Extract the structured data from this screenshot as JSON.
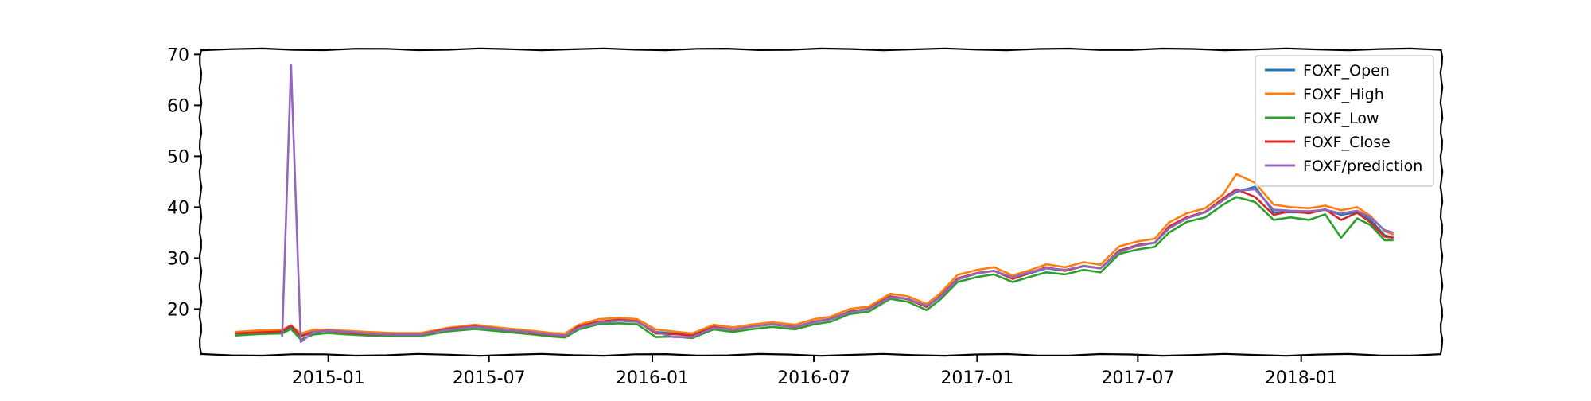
{
  "chart_data": {
    "type": "line",
    "title": "",
    "xlabel": "",
    "ylabel": "",
    "x_ticks": [
      "2015-01",
      "2015-07",
      "2016-01",
      "2016-07",
      "2017-01",
      "2017-07",
      "2018-01"
    ],
    "y_ticks": [
      20,
      30,
      40,
      50,
      60,
      70
    ],
    "xlim": [
      "2014-08-10",
      "2018-06-08"
    ],
    "ylim": [
      11,
      71
    ],
    "legend_placement": "top-right",
    "grid": false,
    "x": [
      "2014-09-18",
      "2014-10-15",
      "2014-11-10",
      "2014-11-20",
      "2014-12-01",
      "2014-12-15",
      "2015-01-01",
      "2015-01-15",
      "2015-02-15",
      "2015-03-15",
      "2015-04-15",
      "2015-05-15",
      "2015-06-15",
      "2015-07-15",
      "2015-08-15",
      "2015-09-10",
      "2015-09-25",
      "2015-10-10",
      "2015-11-01",
      "2015-11-25",
      "2015-12-15",
      "2016-01-05",
      "2016-01-25",
      "2016-02-15",
      "2016-03-10",
      "2016-04-01",
      "2016-04-20",
      "2016-05-15",
      "2016-06-10",
      "2016-07-01",
      "2016-07-20",
      "2016-08-10",
      "2016-09-01",
      "2016-09-25",
      "2016-10-15",
      "2016-11-05",
      "2016-11-20",
      "2016-12-10",
      "2017-01-01",
      "2017-01-20",
      "2017-02-10",
      "2017-03-01",
      "2017-03-20",
      "2017-04-10",
      "2017-05-01",
      "2017-05-20",
      "2017-06-10",
      "2017-07-01",
      "2017-07-20",
      "2017-08-05",
      "2017-08-25",
      "2017-09-15",
      "2017-10-05",
      "2017-10-20",
      "2017-11-10",
      "2017-12-01",
      "2017-12-20",
      "2018-01-10",
      "2018-01-28",
      "2018-02-15",
      "2018-03-05",
      "2018-03-20",
      "2018-04-05",
      "2018-04-15"
    ],
    "series": [
      {
        "name": "FOXF_Open",
        "color": "#1f77b4",
        "values": [
          15.2,
          15.5,
          15.6,
          16.5,
          14.8,
          15.5,
          15.7,
          15.5,
          15.2,
          15.0,
          15.0,
          16.0,
          16.5,
          16.0,
          15.5,
          15.0,
          14.8,
          16.5,
          17.5,
          17.7,
          17.5,
          15.5,
          15.2,
          14.8,
          16.5,
          16.0,
          16.5,
          17.0,
          16.5,
          17.5,
          18.0,
          19.5,
          20.0,
          22.5,
          22.0,
          20.5,
          22.5,
          26.0,
          27.0,
          27.5,
          26.0,
          27.0,
          28.0,
          27.5,
          28.5,
          28.0,
          31.5,
          32.5,
          33.0,
          36.0,
          38.0,
          39.0,
          41.5,
          43.0,
          44.0,
          39.0,
          39.0,
          39.0,
          39.5,
          38.5,
          39.0,
          37.5,
          34.5,
          34.0
        ]
      },
      {
        "name": "FOXF_High",
        "color": "#ff7f0e",
        "values": [
          15.5,
          15.8,
          15.9,
          16.8,
          15.2,
          15.9,
          16.0,
          15.8,
          15.5,
          15.3,
          15.3,
          16.3,
          16.9,
          16.3,
          15.8,
          15.3,
          15.2,
          16.9,
          18.0,
          18.3,
          18.0,
          16.0,
          15.6,
          15.2,
          16.9,
          16.4,
          16.9,
          17.4,
          16.9,
          18.0,
          18.5,
          20.0,
          20.5,
          23.0,
          22.5,
          21.0,
          23.0,
          26.7,
          27.7,
          28.2,
          26.6,
          27.6,
          28.8,
          28.2,
          29.2,
          28.7,
          32.3,
          33.3,
          33.8,
          37.0,
          38.8,
          39.8,
          42.5,
          46.5,
          44.8,
          40.5,
          40.0,
          39.8,
          40.3,
          39.4,
          40.0,
          38.3,
          35.3,
          34.6
        ]
      },
      {
        "name": "FOXF_Low",
        "color": "#2ca02c",
        "values": [
          14.8,
          15.1,
          15.2,
          16.1,
          14.0,
          15.0,
          15.3,
          15.1,
          14.8,
          14.7,
          14.7,
          15.6,
          16.1,
          15.6,
          15.1,
          14.6,
          14.4,
          16.0,
          17.0,
          17.2,
          17.0,
          14.5,
          14.6,
          14.3,
          16.0,
          15.5,
          16.0,
          16.5,
          16.0,
          17.0,
          17.5,
          19.0,
          19.5,
          22.0,
          21.4,
          19.8,
          21.8,
          25.3,
          26.3,
          26.8,
          25.3,
          26.3,
          27.2,
          26.8,
          27.7,
          27.2,
          30.8,
          31.7,
          32.2,
          35.0,
          37.1,
          38.0,
          40.5,
          42.0,
          41.0,
          37.5,
          38.0,
          37.5,
          38.6,
          34.0,
          37.8,
          36.5,
          33.5,
          33.5
        ]
      },
      {
        "name": "FOXF_Close",
        "color": "#d62728",
        "values": [
          15.2,
          15.4,
          15.6,
          16.8,
          14.6,
          15.5,
          15.8,
          15.4,
          15.1,
          15.0,
          15.0,
          16.1,
          16.6,
          16.0,
          15.4,
          14.9,
          14.7,
          16.6,
          17.5,
          17.9,
          17.6,
          15.2,
          15.1,
          14.8,
          16.5,
          15.9,
          16.5,
          17.0,
          16.4,
          17.5,
          18.1,
          19.4,
          20.1,
          22.5,
          21.9,
          20.4,
          22.4,
          26.0,
          27.1,
          27.5,
          25.9,
          27.1,
          28.2,
          27.5,
          28.4,
          28.0,
          31.4,
          32.6,
          33.0,
          36.2,
          38.0,
          39.1,
          41.7,
          43.5,
          42.0,
          38.5,
          39.2,
          38.8,
          39.6,
          37.5,
          38.9,
          37.0,
          34.2,
          34.0
        ]
      },
      {
        "name": "FOXF/prediction",
        "color": "#9467bd",
        "values": [
          null,
          null,
          14.5,
          68.0,
          13.5,
          15.5,
          15.8,
          15.6,
          15.2,
          15.0,
          15.0,
          15.9,
          16.5,
          16.0,
          15.5,
          15.0,
          14.8,
          16.3,
          17.3,
          17.7,
          17.5,
          15.5,
          14.5,
          14.5,
          16.3,
          16.0,
          16.5,
          17.0,
          16.5,
          17.4,
          18.0,
          19.3,
          20.0,
          22.3,
          22.0,
          20.6,
          22.3,
          25.8,
          27.0,
          27.5,
          26.2,
          27.2,
          28.0,
          27.7,
          28.4,
          28.0,
          31.2,
          32.4,
          33.0,
          35.8,
          37.8,
          39.0,
          41.3,
          43.2,
          43.5,
          39.5,
          39.3,
          39.2,
          39.5,
          38.8,
          39.3,
          38.0,
          35.5,
          35.0
        ]
      }
    ]
  }
}
